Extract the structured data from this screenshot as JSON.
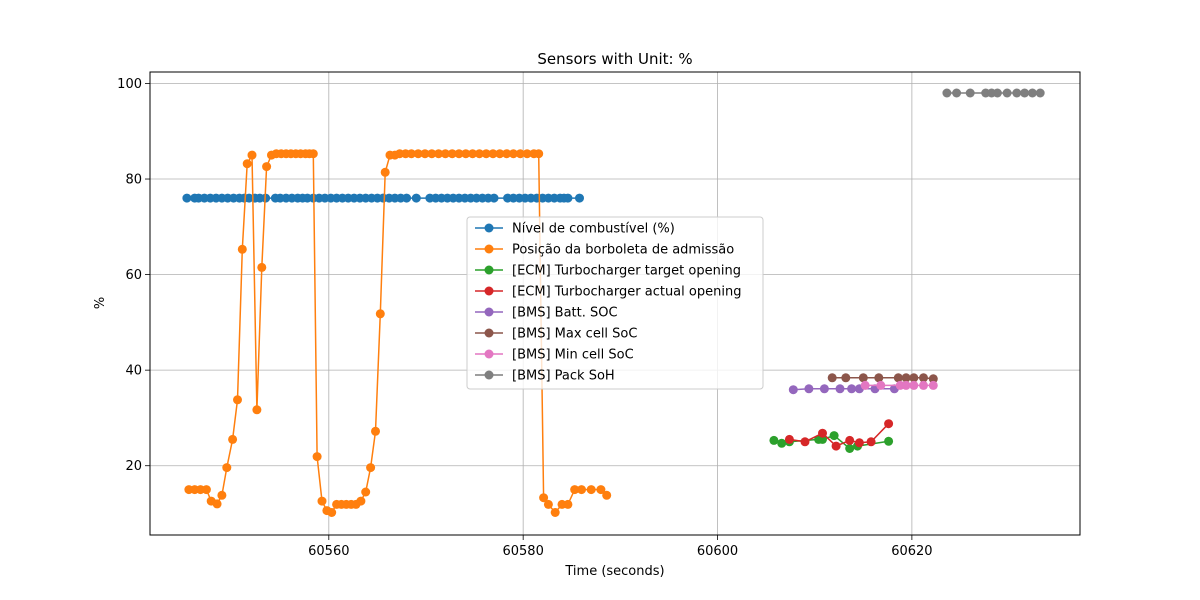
{
  "chart_data": {
    "type": "line",
    "title": "Sensors with Unit: %",
    "xlabel": "Time (seconds)",
    "ylabel": "%",
    "xlim": [
      60541.6,
      60637.3
    ],
    "ylim": [
      5.5,
      102.4
    ],
    "xticks": [
      60560,
      60580,
      60600,
      60620
    ],
    "yticks": [
      20,
      40,
      60,
      80,
      100
    ],
    "grid": true,
    "legend_position": "center",
    "series": [
      {
        "name": "Nível de combustível (%)",
        "color": "#1f77b4",
        "x": [
          60545.4,
          60546.2,
          60546.6,
          60547.2,
          60547.8,
          60548.4,
          60549.0,
          60549.6,
          60550.2,
          60550.8,
          60551.3,
          60551.8,
          60552.4,
          60552.9,
          60553.5,
          60554.5,
          60555.0,
          60555.6,
          60556.2,
          60556.8,
          60557.3,
          60557.8,
          60558.4,
          60559.0,
          60559.6,
          60560.2,
          60560.8,
          60561.4,
          60562.0,
          60562.6,
          60563.2,
          60563.8,
          60564.4,
          60565.0,
          60565.6,
          60566.2,
          60566.8,
          60567.4,
          60568.0,
          60569.0,
          60570.4,
          60571.0,
          60571.6,
          60572.2,
          60572.8,
          60573.4,
          60574.0,
          60574.6,
          60575.2,
          60575.8,
          60576.4,
          60577.0,
          60578.4,
          60579.0,
          60579.6,
          60580.2,
          60580.8,
          60581.4,
          60582.0,
          60582.6,
          60583.2,
          60583.8,
          60584.2,
          60584.6,
          60585.8
        ],
        "y": [
          76,
          76,
          76,
          76,
          76,
          76,
          76,
          76,
          76,
          76,
          76,
          76,
          76,
          76,
          76,
          76,
          76,
          76,
          76,
          76,
          76,
          76,
          76,
          76,
          76,
          76,
          76,
          76,
          76,
          76,
          76,
          76,
          76,
          76,
          76,
          76,
          76,
          76,
          76,
          76,
          76,
          76,
          76,
          76,
          76,
          76,
          76,
          76,
          76,
          76,
          76,
          76,
          76,
          76,
          76,
          76,
          76,
          76,
          76,
          76,
          76,
          76,
          76,
          76,
          76
        ],
        "draw_line": true
      },
      {
        "name": "Posição da borboleta de admissão",
        "color": "#ff7f0e",
        "x": [
          60545.6,
          60546.2,
          60546.8,
          60547.4,
          60547.9,
          60548.5,
          60549.0,
          60549.5,
          60550.1,
          60550.6,
          60551.1,
          60551.6,
          60552.1,
          60552.6,
          60553.1,
          60553.6,
          60554.1,
          60554.6,
          60555.1,
          60555.6,
          60556.1,
          60556.6,
          60557.1,
          60557.6,
          60558.0,
          60558.4,
          60558.8,
          60559.3,
          60559.8,
          60560.3,
          60560.8,
          60561.3,
          60561.8,
          60562.3,
          60562.8,
          60563.3,
          60563.8,
          60564.3,
          60564.8,
          60565.3,
          60565.8,
          60566.3,
          60566.8,
          60567.3,
          60567.9,
          60568.5,
          60569.2,
          60569.9,
          60570.6,
          60571.3,
          60572.0,
          60572.7,
          60573.4,
          60574.1,
          60574.8,
          60575.5,
          60576.2,
          60576.9,
          60577.6,
          60578.3,
          60579.0,
          60579.7,
          60580.4,
          60581.1,
          60581.6,
          60582.1,
          60582.6,
          60583.3,
          60584.0,
          60584.6,
          60585.3,
          60586.0,
          60587.0,
          60588.0,
          60588.6
        ],
        "y": [
          15,
          15,
          15,
          15,
          12.6,
          12.0,
          13.8,
          19.6,
          25.5,
          33.8,
          65.3,
          83.2,
          85.0,
          31.7,
          61.5,
          82.6,
          85.0,
          85.3,
          85.3,
          85.3,
          85.3,
          85.3,
          85.3,
          85.3,
          85.3,
          85.3,
          21.9,
          12.6,
          10.6,
          10.2,
          11.9,
          11.9,
          11.9,
          11.9,
          11.9,
          12.6,
          14.5,
          19.6,
          27.2,
          51.8,
          81.4,
          85.0,
          85.0,
          85.3,
          85.3,
          85.3,
          85.3,
          85.3,
          85.3,
          85.3,
          85.3,
          85.3,
          85.3,
          85.3,
          85.3,
          85.3,
          85.3,
          85.3,
          85.3,
          85.3,
          85.3,
          85.3,
          85.3,
          85.3,
          85.3,
          13.3,
          11.9,
          10.2,
          11.9,
          11.9,
          15.0,
          15.0,
          15.0,
          15.0,
          13.8
        ],
        "draw_line": true
      },
      {
        "name": "[ECM] Turbocharger target opening",
        "color": "#2ca02c",
        "x": [
          60605.8,
          60606.6,
          60607.4,
          60610.4,
          60610.8,
          60612.0,
          60613.6,
          60614.4,
          60617.6
        ],
        "y": [
          25.3,
          24.7,
          25.0,
          25.5,
          25.5,
          26.3,
          23.6,
          24.1,
          25.1
        ],
        "draw_line": true
      },
      {
        "name": "[ECM] Turbocharger actual opening",
        "color": "#d62728",
        "x": [
          60607.4,
          60609.0,
          60610.8,
          60612.2,
          60613.6,
          60614.6,
          60615.8,
          60617.6
        ],
        "y": [
          25.5,
          25.0,
          26.8,
          24.1,
          25.3,
          24.8,
          25.0,
          28.8
        ],
        "draw_line": true
      },
      {
        "name": "[BMS] Batt. SOC",
        "color": "#9467bd",
        "x": [
          60607.8,
          60609.4,
          60611.0,
          60612.6,
          60613.8,
          60614.6,
          60616.2,
          60618.2
        ],
        "y": [
          35.9,
          36.1,
          36.1,
          36.1,
          36.1,
          36.1,
          36.1,
          36.1
        ],
        "draw_line": true
      },
      {
        "name": "[BMS] Max cell SoC",
        "color": "#8c564b",
        "x": [
          60611.8,
          60613.2,
          60615.0,
          60616.6,
          60618.6,
          60619.4,
          60620.2,
          60621.2,
          60622.2
        ],
        "y": [
          38.4,
          38.4,
          38.4,
          38.4,
          38.4,
          38.4,
          38.4,
          38.4,
          38.2
        ],
        "draw_line": true
      },
      {
        "name": "[BMS] Min cell SoC",
        "color": "#e377c2",
        "x": [
          60615.2,
          60616.8,
          60618.8,
          60619.4,
          60620.2,
          60621.2,
          60622.2
        ],
        "y": [
          36.8,
          36.8,
          36.8,
          36.8,
          36.8,
          36.8,
          36.8
        ],
        "draw_line": true
      },
      {
        "name": "[BMS] Pack SoH",
        "color": "#7f7f7f",
        "x": [
          60623.6,
          60624.6,
          60626.0,
          60627.6,
          60628.2,
          60628.8,
          60629.8,
          60630.8,
          60631.6,
          60632.4,
          60633.2
        ],
        "y": [
          98,
          98,
          98,
          98,
          98,
          98,
          98,
          98,
          98,
          98,
          98
        ],
        "draw_line": true
      }
    ]
  }
}
